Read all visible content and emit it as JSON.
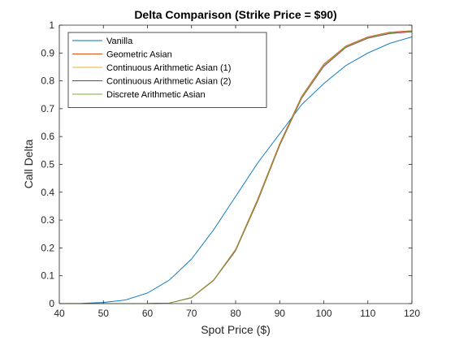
{
  "chart_data": {
    "type": "line",
    "title": "Delta Comparison (Strike Price = $90)",
    "xlabel": "Spot Price ($)",
    "ylabel": "Call Delta",
    "xlim": [
      40,
      120
    ],
    "ylim": [
      0,
      1
    ],
    "xticks": [
      40,
      50,
      60,
      70,
      80,
      90,
      100,
      110,
      120
    ],
    "yticks": [
      0,
      0.1,
      0.2,
      0.3,
      0.4,
      0.5,
      0.6,
      0.7,
      0.8,
      0.9,
      1
    ],
    "xtick_labels": [
      "40",
      "50",
      "60",
      "70",
      "80",
      "90",
      "100",
      "110",
      "120"
    ],
    "ytick_labels": [
      "0",
      "0.1",
      "0.2",
      "0.3",
      "0.4",
      "0.5",
      "0.6",
      "0.7",
      "0.8",
      "0.9",
      "1"
    ],
    "grid": false,
    "legend_position": "top-left",
    "x": [
      40,
      45,
      50,
      55,
      60,
      65,
      70,
      75,
      80,
      85,
      90,
      95,
      100,
      105,
      110,
      115,
      120
    ],
    "series": [
      {
        "name": "Vanilla",
        "color": "#0072BD",
        "values": [
          0.0,
          0.001,
          0.004,
          0.013,
          0.038,
          0.085,
          0.16,
          0.265,
          0.385,
          0.505,
          0.61,
          0.715,
          0.79,
          0.855,
          0.9,
          0.935,
          0.958
        ]
      },
      {
        "name": "Geometric Asian",
        "color": "#D95319",
        "values": [
          0.0,
          0.0,
          0.0,
          0.0,
          0.0,
          0.002,
          0.022,
          0.085,
          0.195,
          0.375,
          0.575,
          0.745,
          0.86,
          0.925,
          0.958,
          0.975,
          0.98
        ]
      },
      {
        "name": "Continuous Arithmetic Asian (1)",
        "color": "#EDB120",
        "values": [
          0.0,
          0.0,
          0.0,
          0.0,
          0.0,
          0.002,
          0.021,
          0.083,
          0.19,
          0.368,
          0.568,
          0.738,
          0.852,
          0.92,
          0.953,
          0.97,
          0.976
        ]
      },
      {
        "name": "Continuous Arithmetic Asian (2)",
        "color": "#7E2F8E",
        "values": [
          0.0,
          0.0,
          0.0,
          0.0,
          0.0,
          0.002,
          0.021,
          0.083,
          0.19,
          0.368,
          0.568,
          0.738,
          0.852,
          0.92,
          0.953,
          0.97,
          0.976
        ]
      },
      {
        "name": "Discrete Arithmetic Asian",
        "color": "#77AC30",
        "values": [
          0.0,
          0.0,
          0.0,
          0.0,
          0.0,
          0.002,
          0.022,
          0.084,
          0.192,
          0.37,
          0.57,
          0.74,
          0.855,
          0.922,
          0.955,
          0.972,
          0.978
        ]
      }
    ]
  }
}
